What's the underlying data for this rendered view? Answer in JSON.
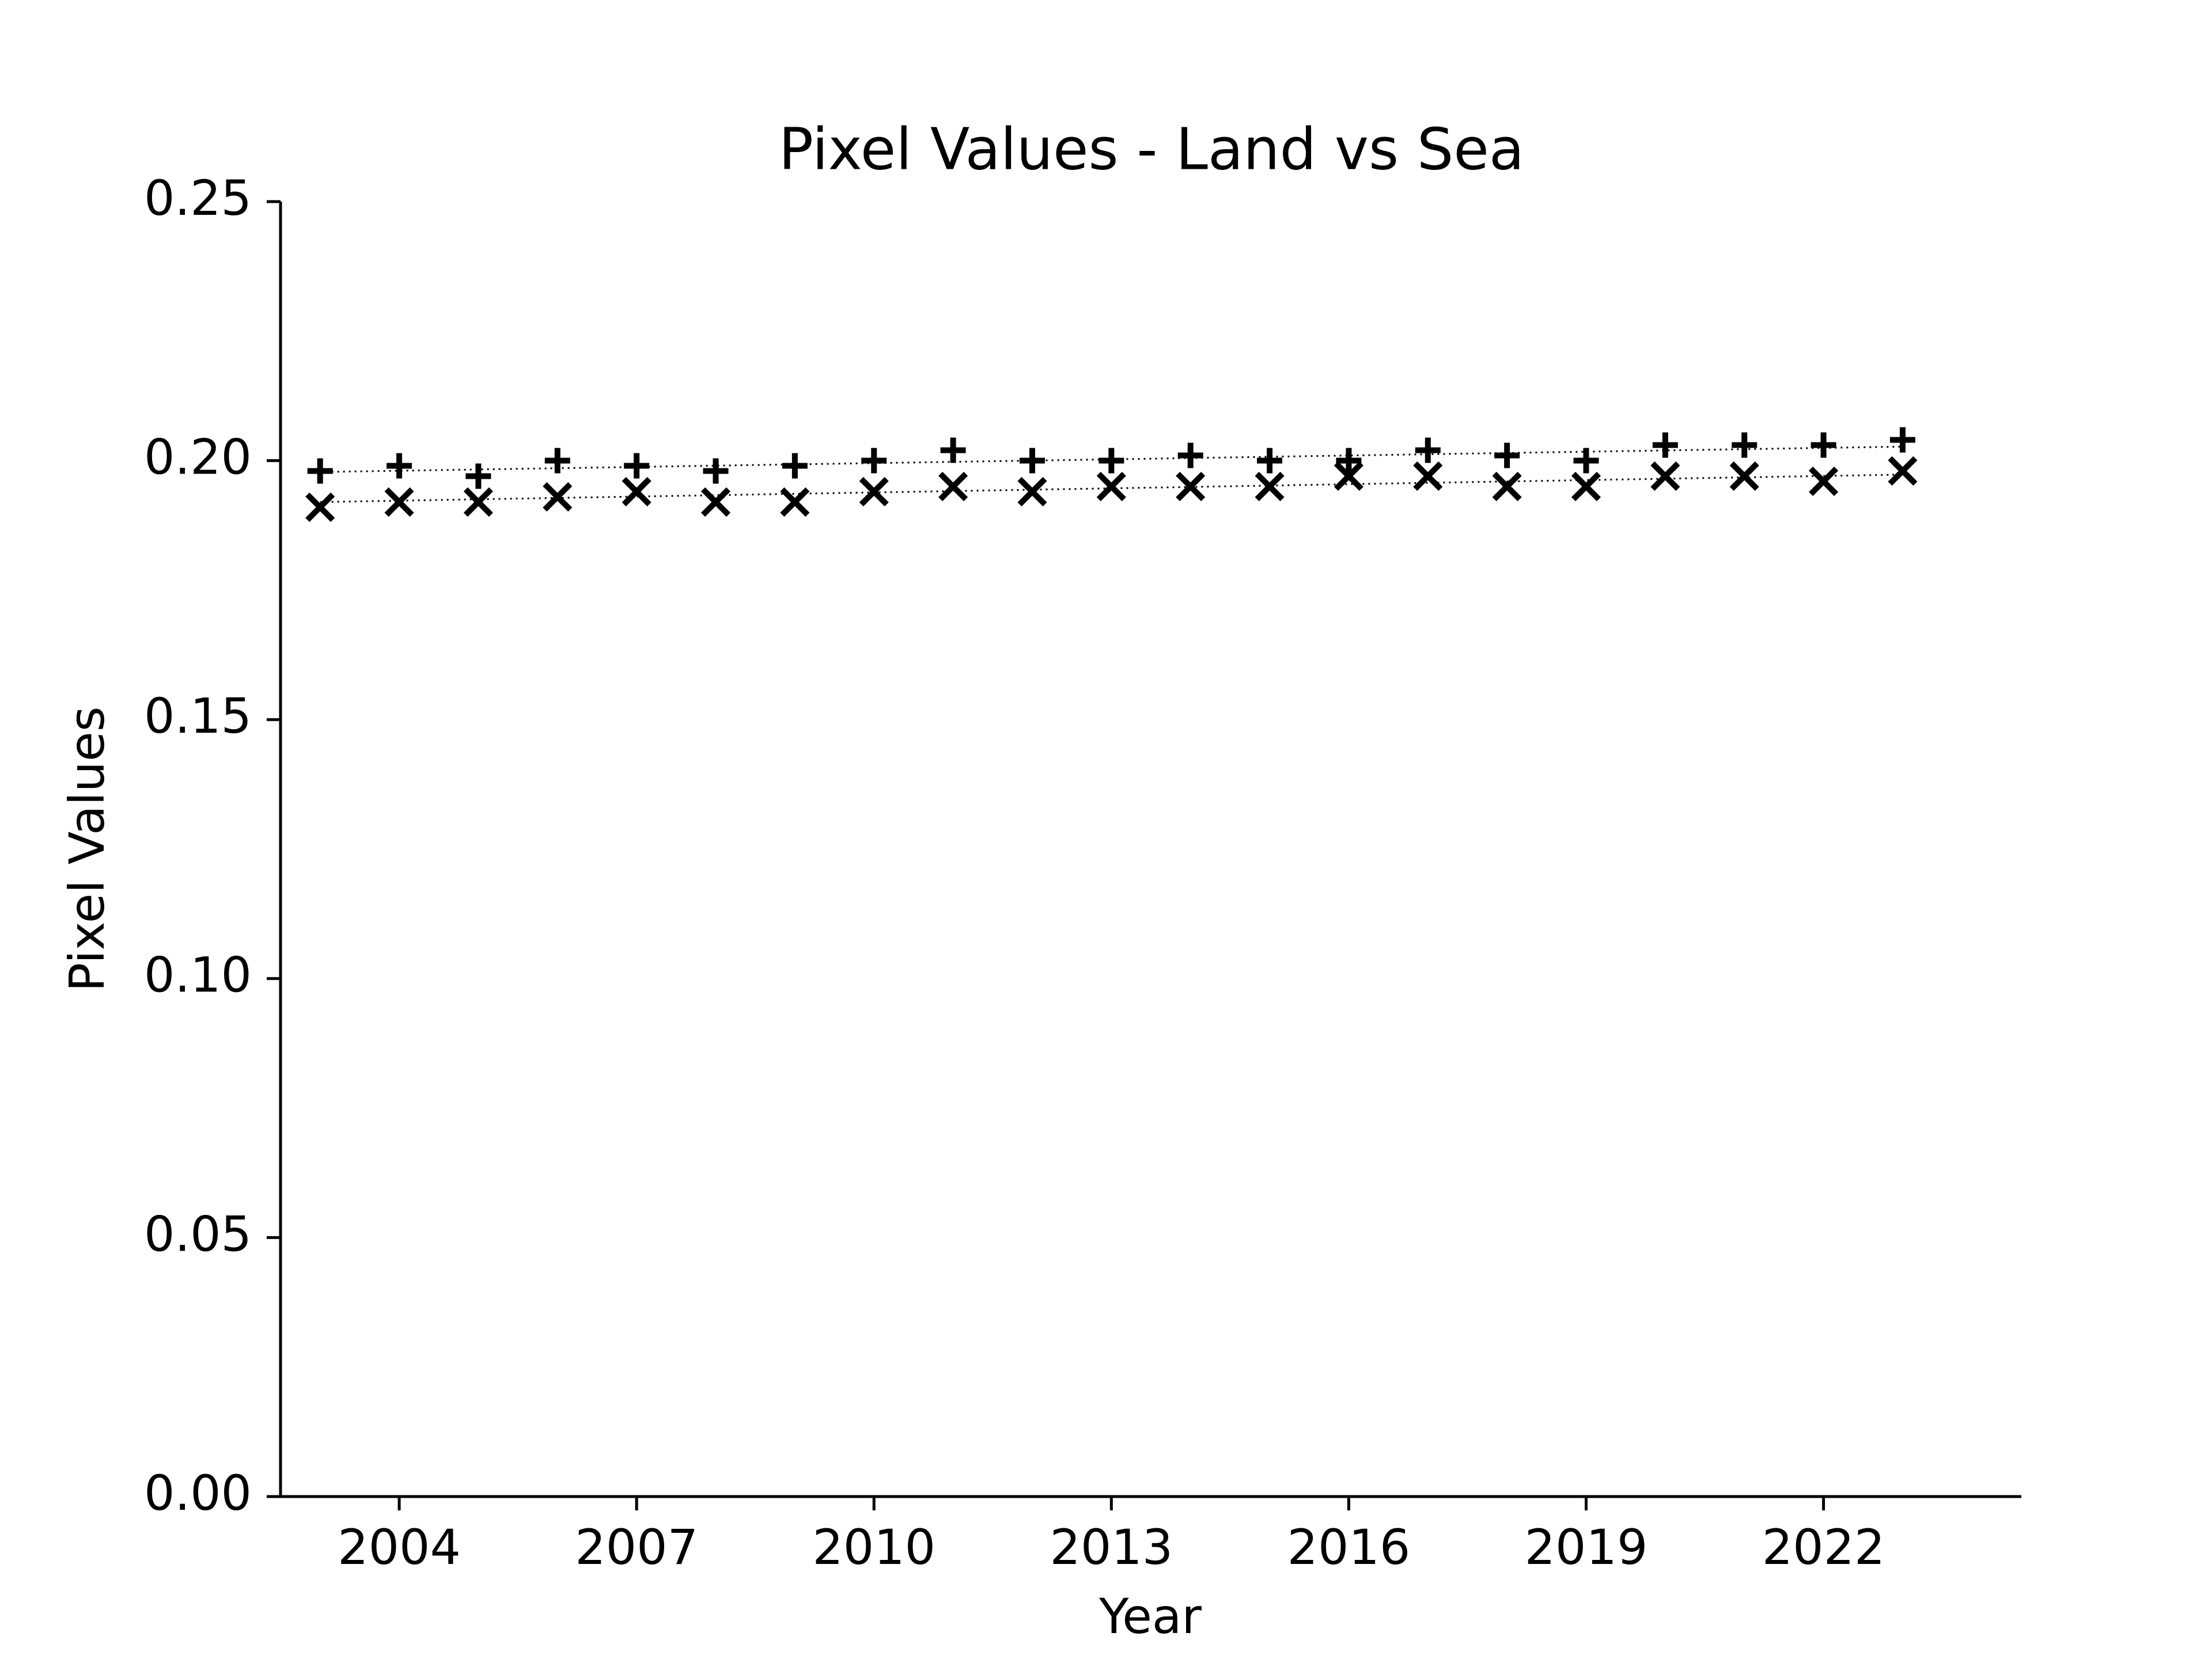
{
  "chart_data": {
    "type": "scatter",
    "title": "Pixel Values - Land vs Sea",
    "xlabel": "Year",
    "ylabel": "Pixel Values",
    "xlim": [
      2002.5,
      2024.5
    ],
    "ylim": [
      0,
      0.25
    ],
    "xticks": [
      "2004",
      "2007",
      "2010",
      "2013",
      "2016",
      "2019",
      "2022"
    ],
    "yticks": [
      "0.00",
      "0.05",
      "0.10",
      "0.15",
      "0.20",
      "0.25"
    ],
    "grid": false,
    "legend": "none",
    "colors": {
      "markers": "#000000",
      "trend": "#000000"
    },
    "series": [
      {
        "marker": "plus",
        "x": [
          2003,
          2004,
          2005,
          2006,
          2007,
          2008,
          2009,
          2010,
          2011,
          2012,
          2013,
          2014,
          2015,
          2016,
          2017,
          2018,
          2019,
          2020,
          2021,
          2022,
          2023
        ],
        "values": [
          0.198,
          0.199,
          0.197,
          0.2,
          0.199,
          0.198,
          0.199,
          0.2,
          0.202,
          0.2,
          0.2,
          0.201,
          0.2,
          0.2,
          0.202,
          0.201,
          0.2,
          0.203,
          0.203,
          0.203,
          0.204
        ],
        "trend": [
          0.1978,
          0.2027
        ]
      },
      {
        "marker": "x",
        "x": [
          2003,
          2004,
          2005,
          2006,
          2007,
          2008,
          2009,
          2010,
          2011,
          2012,
          2013,
          2014,
          2015,
          2016,
          2017,
          2018,
          2019,
          2020,
          2021,
          2022,
          2023
        ],
        "values": [
          0.191,
          0.192,
          0.192,
          0.193,
          0.194,
          0.192,
          0.192,
          0.194,
          0.195,
          0.194,
          0.195,
          0.195,
          0.195,
          0.197,
          0.197,
          0.195,
          0.195,
          0.197,
          0.197,
          0.196,
          0.198
        ],
        "trend": [
          0.192,
          0.1973
        ]
      }
    ]
  }
}
